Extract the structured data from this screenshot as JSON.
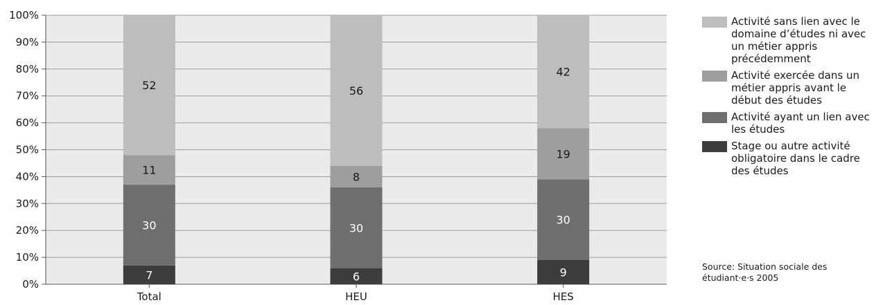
{
  "chart_data": {
    "type": "bar",
    "stacked": true,
    "categories": [
      "Total",
      "HEU",
      "HES"
    ],
    "series": [
      {
        "name": "Stage ou autre activité obligatoire dans le cadre des études",
        "values": [
          7,
          6,
          9
        ],
        "color": "#3d3d3d",
        "label_color": "#ffffff"
      },
      {
        "name": "Activité ayant un lien avec les études",
        "values": [
          30,
          30,
          30
        ],
        "color": "#6e6e6e",
        "label_color": "#ffffff"
      },
      {
        "name": "Activité exercée dans un métier appris avant le début des études",
        "values": [
          11,
          8,
          19
        ],
        "color": "#9e9e9e",
        "label_color": "#1a1a1a"
      },
      {
        "name": "Activité sans lien avec le domaine d’études ni avec un métier appris précédemment",
        "values": [
          52,
          56,
          42
        ],
        "color": "#bdbdbd",
        "label_color": "#1a1a1a"
      }
    ],
    "ylim": [
      0,
      100
    ],
    "yticks": [
      "0%",
      "10%",
      "20%",
      "30%",
      "40%",
      "50%",
      "60%",
      "70%",
      "80%",
      "90%",
      "100%"
    ],
    "grid": true,
    "legend_position": "right",
    "plot_background": "#ebebeb"
  },
  "legend": {
    "items": [
      {
        "label": "Activité sans lien avec le domaine d’études ni avec un métier appris précédemment",
        "color": "#bdbdbd"
      },
      {
        "label": "Activité exercée dans un métier appris avant le début des études",
        "color": "#9e9e9e"
      },
      {
        "label": "Activité ayant un lien avec les études",
        "color": "#6e6e6e"
      },
      {
        "label": "Stage ou autre activité obligatoire dans le cadre des études",
        "color": "#3d3d3d"
      }
    ]
  },
  "source": "Source: Situation sociale des étudiant·e·s 2005"
}
